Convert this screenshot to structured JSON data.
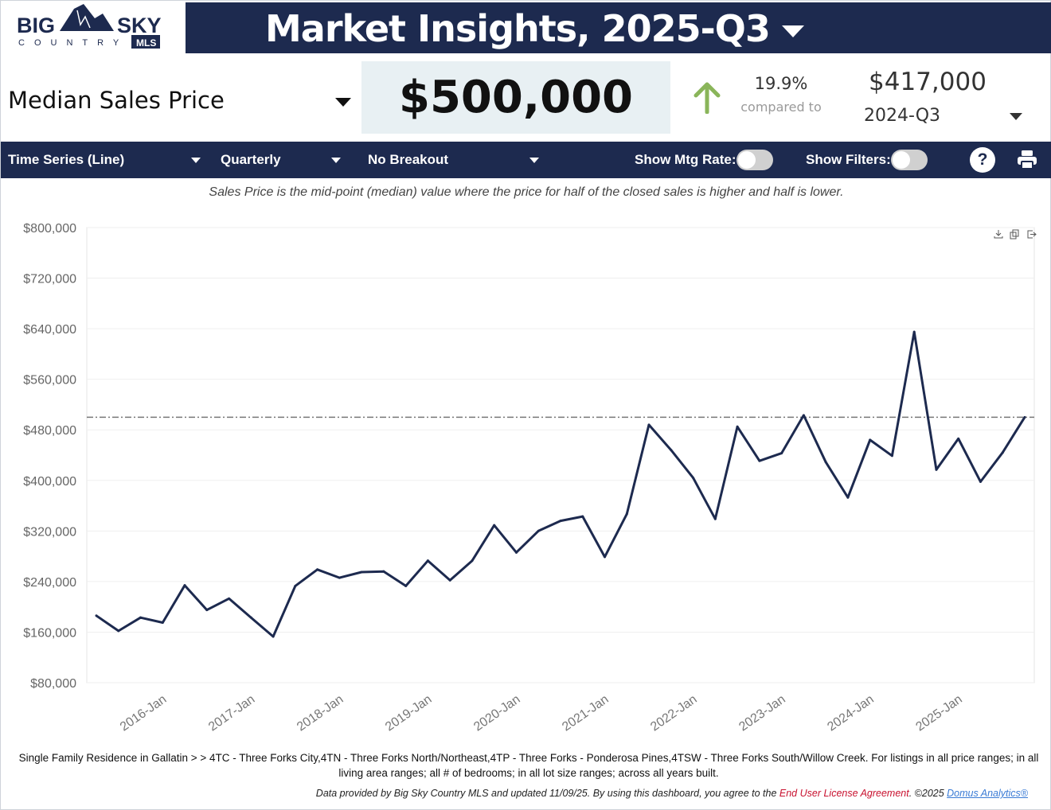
{
  "logo": {
    "line1": "BIG SKY",
    "line2": "COUNTRY",
    "badge": "MLS"
  },
  "header": {
    "title": "Market Insights, 2025-Q3"
  },
  "metric": {
    "label": "Median Sales Price",
    "value": "$500,000"
  },
  "comparison": {
    "percent": "19.9%",
    "direction": "up",
    "compared_to_label": "compared to",
    "prev_value": "$417,000",
    "prev_period": "2024-Q3"
  },
  "toolbar": {
    "chart_type": "Time Series (Line)",
    "interval": "Quarterly",
    "breakout": "No Breakout",
    "mtg_rate_label": "Show Mtg Rate:",
    "mtg_rate_on": false,
    "filters_label": "Show Filters:",
    "filters_on": false,
    "help_label": "?"
  },
  "description": "Sales Price is the mid-point (median) value where the price for half of the closed sales is higher and half is lower.",
  "colors": {
    "navy": "#1d2a4f",
    "up_arrow": "#8ab55a",
    "line": "#1d2a4f",
    "eula_link": "#c8102e",
    "domus_link": "#3a7bd5"
  },
  "chart_data": {
    "type": "line",
    "x": [
      "2015-Q1",
      "2015-Q2",
      "2015-Q3",
      "2015-Q4",
      "2016-Q1",
      "2016-Q2",
      "2016-Q3",
      "2016-Q4",
      "2017-Q1",
      "2017-Q2",
      "2017-Q3",
      "2017-Q4",
      "2018-Q1",
      "2018-Q2",
      "2018-Q3",
      "2018-Q4",
      "2019-Q1",
      "2019-Q2",
      "2019-Q3",
      "2019-Q4",
      "2020-Q1",
      "2020-Q2",
      "2020-Q3",
      "2020-Q4",
      "2021-Q1",
      "2021-Q2",
      "2021-Q3",
      "2021-Q4",
      "2022-Q1",
      "2022-Q2",
      "2022-Q3",
      "2022-Q4",
      "2023-Q1",
      "2023-Q2",
      "2023-Q3",
      "2023-Q4",
      "2024-Q1",
      "2024-Q2",
      "2024-Q3",
      "2024-Q4",
      "2025-Q1",
      "2025-Q2",
      "2025-Q3"
    ],
    "values": [
      186000,
      162000,
      183000,
      175000,
      234000,
      195000,
      213000,
      183000,
      153000,
      233000,
      259000,
      246000,
      255000,
      256000,
      233000,
      273000,
      242000,
      273000,
      329000,
      286000,
      320000,
      336000,
      343000,
      279000,
      347000,
      488000,
      448000,
      404000,
      339000,
      485000,
      431000,
      443000,
      503000,
      429000,
      373000,
      464000,
      439000,
      635000,
      417000,
      466000,
      398000,
      444000,
      500000
    ],
    "reference_line": 500000,
    "ylim": [
      80000,
      800000
    ],
    "yticks": [
      "$80,000",
      "$160,000",
      "$240,000",
      "$320,000",
      "$400,000",
      "$480,000",
      "$560,000",
      "$640,000",
      "$720,000",
      "$800,000"
    ],
    "xtick_labels": [
      "2016-Jan",
      "2017-Jan",
      "2018-Jan",
      "2019-Jan",
      "2020-Jan",
      "2021-Jan",
      "2022-Jan",
      "2023-Jan",
      "2024-Jan",
      "2025-Jan"
    ],
    "grid": true
  },
  "filters_text": "Single Family Residence in Gallatin > > 4TC - Three Forks City,4TN - Three Forks North/Northeast,4TP - Three Forks - Ponderosa Pines,4TSW - Three Forks South/Willow Creek. For listings in all price ranges; in all living area ranges; all # of bedrooms; in all lot size ranges; across all years built.",
  "footer": {
    "text": "Data provided by Big Sky Country MLS and updated 11/09/25.  By using this dashboard, you agree to the ",
    "eula": "End User License Agreement",
    "copyright": ".  ©2025 ",
    "domus": "Domus Analytics®"
  }
}
